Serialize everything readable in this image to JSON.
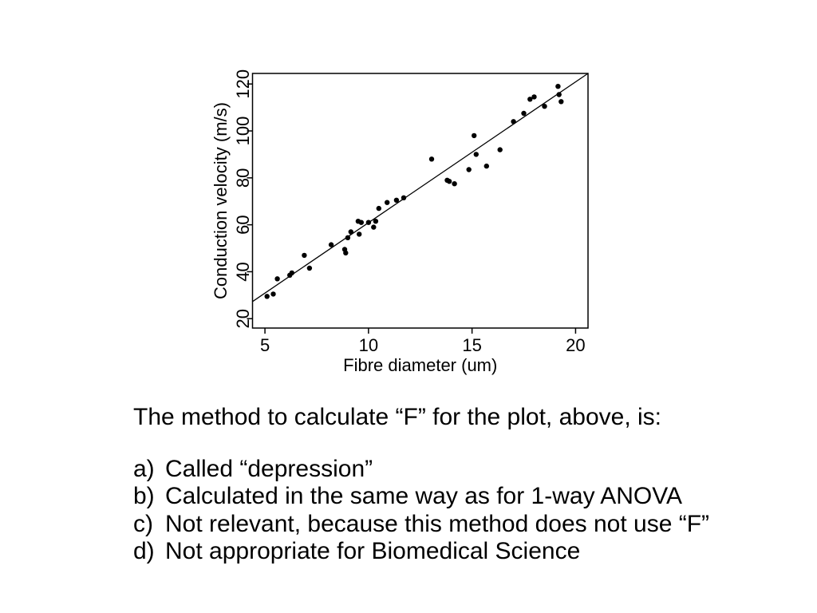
{
  "chart_data": {
    "type": "scatter",
    "title": "",
    "xlabel": "Fibre diameter (um)",
    "ylabel": "Conduction velocity (m/s)",
    "xlim": [
      4.4,
      20.6
    ],
    "ylim": [
      16,
      124.5
    ],
    "x_ticks": [
      5,
      10,
      15,
      20
    ],
    "y_ticks": [
      20,
      40,
      60,
      80,
      100,
      120
    ],
    "grid": false,
    "legend": "none",
    "point_color": "#000000",
    "line_color": "#000000",
    "regression_line": {
      "slope": 6.0,
      "intercept": 0.9
    },
    "points": [
      [
        5.1,
        29.5
      ],
      [
        5.4,
        30.5
      ],
      [
        5.6,
        37
      ],
      [
        6.2,
        38.5
      ],
      [
        6.3,
        39.5
      ],
      [
        6.9,
        47
      ],
      [
        7.15,
        41.5
      ],
      [
        8.2,
        51.5
      ],
      [
        8.85,
        49.5
      ],
      [
        8.9,
        48
      ],
      [
        9.0,
        54.5
      ],
      [
        9.15,
        57
      ],
      [
        9.55,
        56
      ],
      [
        9.5,
        61.5
      ],
      [
        9.65,
        61
      ],
      [
        10.0,
        61
      ],
      [
        10.25,
        59
      ],
      [
        10.35,
        61.5
      ],
      [
        10.5,
        67
      ],
      [
        10.9,
        69.5
      ],
      [
        11.35,
        70.5
      ],
      [
        11.7,
        71.5
      ],
      [
        13.05,
        88
      ],
      [
        13.8,
        79
      ],
      [
        13.9,
        78.5
      ],
      [
        14.15,
        77.5
      ],
      [
        14.85,
        83.5
      ],
      [
        15.1,
        98
      ],
      [
        15.2,
        90
      ],
      [
        15.7,
        85
      ],
      [
        16.35,
        92
      ],
      [
        17.0,
        104
      ],
      [
        17.5,
        107.5
      ],
      [
        17.8,
        113.5
      ],
      [
        18.0,
        114.5
      ],
      [
        18.5,
        110.5
      ],
      [
        19.15,
        119
      ],
      [
        19.2,
        115.5
      ],
      [
        19.3,
        112.5
      ]
    ]
  },
  "question": {
    "text": "The method to calculate “F” for the plot, above, is:",
    "options": [
      {
        "letter": "a)",
        "text": "Called “depression”"
      },
      {
        "letter": "b)",
        "text": "Calculated in the same way as for 1-way ANOVA"
      },
      {
        "letter": "c)",
        "text": "Not relevant, because this method does not use “F”"
      },
      {
        "letter": "d)",
        "text": "Not appropriate for Biomedical Science"
      }
    ]
  }
}
